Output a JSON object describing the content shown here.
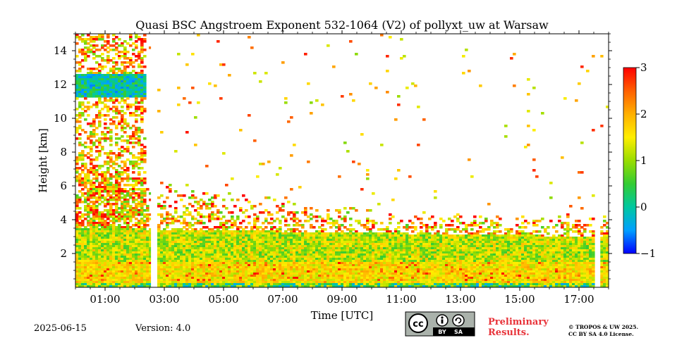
{
  "chart_data": {
    "type": "heatmap",
    "title": "Quasi BSC Angstroem Exponent 532-1064 (V2) of pollyxt_uw at Warsaw",
    "xlabel": "Time [UTC]",
    "ylabel": "Height [km]",
    "xlim_hours": [
      0,
      18
    ],
    "ylim_km": [
      0,
      15
    ],
    "x_tick_hours": [
      1,
      3,
      5,
      7,
      9,
      11,
      13,
      15,
      17
    ],
    "x_tick_labels": [
      "01:00",
      "03:00",
      "05:00",
      "07:00",
      "09:00",
      "11:00",
      "13:00",
      "15:00",
      "17:00"
    ],
    "y_ticks": [
      2,
      4,
      6,
      8,
      10,
      12,
      14
    ],
    "y_tick_labels": [
      "2",
      "4",
      "6",
      "8",
      "10",
      "12",
      "14"
    ],
    "colorbar": {
      "range": [
        -1,
        3
      ],
      "ticks": [
        -1,
        0,
        1,
        2,
        3
      ],
      "tick_labels": [
        "−1",
        "0",
        "1",
        "2",
        "3"
      ],
      "colormap": [
        "#0000ff",
        "#00a0ff",
        "#00c8a0",
        "#33cc33",
        "#99dd00",
        "#ffee00",
        "#ffb000",
        "#ff6000",
        "#ff0000"
      ]
    },
    "data_gaps_hours": [
      [
        2.55,
        2.72
      ],
      [
        17.55,
        17.72
      ]
    ],
    "layers_km": {
      "surface_noise_top": 0.2,
      "aerosol_dense_top_start": 3.5,
      "aerosol_dense_top_end": 3.0,
      "aerosol_sparse_top_start": 6.5,
      "aerosol_sparse_top_end": 4.0,
      "early_cloud_base": 11.3,
      "early_cloud_top": 12.6,
      "early_sparse_top": 15.0,
      "early_end_hour": 2.4
    },
    "typical_values": {
      "boundary_layer": 1.6,
      "mid_layer": 1.2,
      "upper_aerosol": 1.9,
      "early_cloud": 0.0
    }
  },
  "footer": {
    "date": "2025-06-15",
    "version": "Version: 4.0",
    "preliminary_line1": "Preliminary",
    "preliminary_line2": "Results.",
    "copyright_line1": "© TROPOS & UW 2025.",
    "copyright_line2": "CC BY SA 4.0 License.",
    "cc_badge": {
      "main": "cc",
      "by": "BY",
      "sa": "SA"
    }
  }
}
